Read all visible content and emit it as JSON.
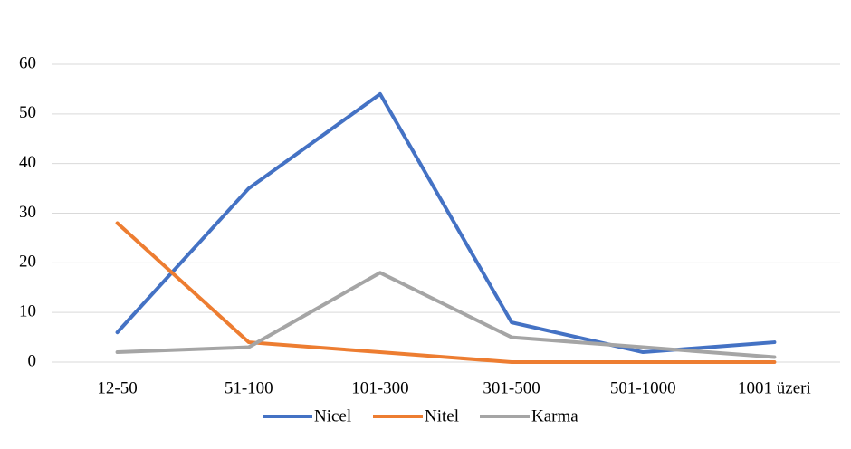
{
  "chart_data": {
    "type": "line",
    "categories": [
      "12-50",
      "51-100",
      "101-300",
      "301-500",
      "501-1000",
      "1001 üzeri"
    ],
    "series": [
      {
        "name": "Nicel",
        "color": "#4472c4",
        "values": [
          6,
          35,
          54,
          8,
          2,
          4
        ]
      },
      {
        "name": "Nitel",
        "color": "#ed7d31",
        "values": [
          28,
          4,
          2,
          0,
          0,
          0
        ]
      },
      {
        "name": "Karma",
        "color": "#a5a5a5",
        "values": [
          2,
          3,
          18,
          5,
          3,
          1
        ]
      }
    ],
    "ylim": [
      0,
      60
    ],
    "yticks": [
      0,
      10,
      20,
      30,
      40,
      50,
      60
    ],
    "grid": true,
    "legend": "bottom"
  }
}
